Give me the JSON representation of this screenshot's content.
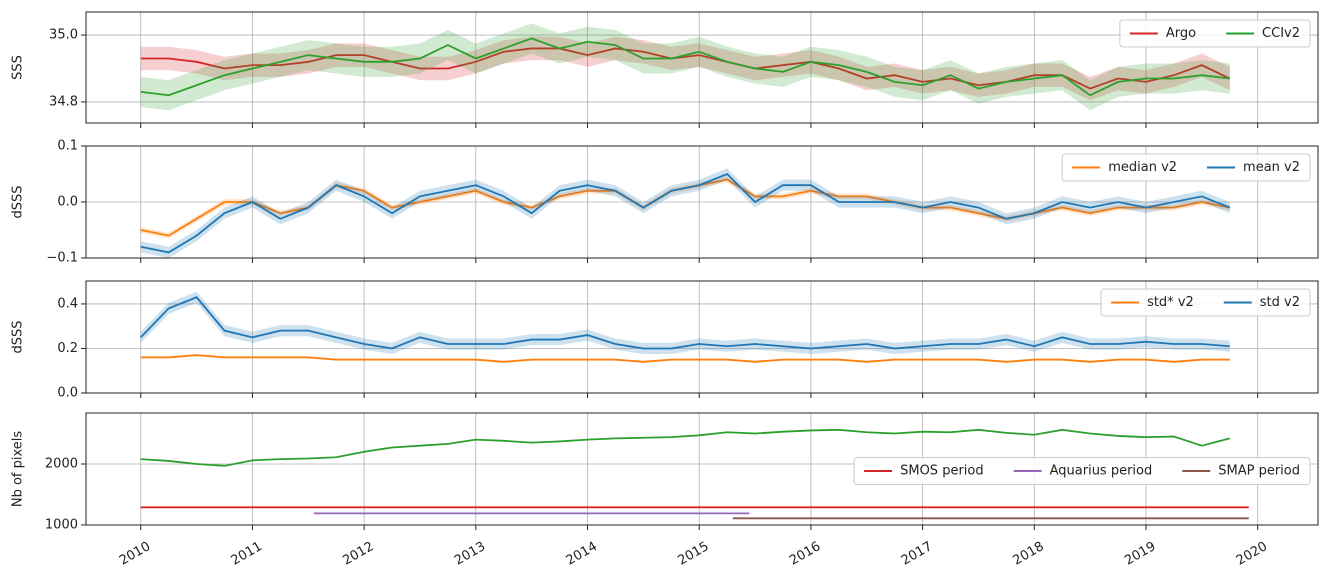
{
  "chart_data": [
    {
      "type": "line",
      "ylabel": "SSS",
      "ylim": [
        34.737,
        35.069
      ],
      "yticks": [
        {
          "value": 34.8,
          "label": "34.8"
        },
        {
          "value": 35,
          "label": "35.0"
        }
      ],
      "legend": "upper right",
      "legend_columns": 2,
      "grid": true,
      "x": [
        2010,
        2010.25,
        2010.5,
        2010.75,
        2011,
        2011.25,
        2011.5,
        2011.75,
        2012,
        2012.25,
        2012.5,
        2012.75,
        2013,
        2013.25,
        2013.5,
        2013.75,
        2014,
        2014.25,
        2014.5,
        2014.75,
        2015,
        2015.25,
        2015.5,
        2015.75,
        2016,
        2016.25,
        2016.5,
        2016.75,
        2017,
        2017.25,
        2017.5,
        2017.75,
        2018,
        2018.25,
        2018.5,
        2018.75,
        2019,
        2019.25,
        2019.5,
        2019.75
      ],
      "series": [
        {
          "name": "Argo",
          "color": "#d62728",
          "band": 0.035,
          "values": [
            34.93,
            34.93,
            34.92,
            34.9,
            34.91,
            34.91,
            34.92,
            34.94,
            34.94,
            34.92,
            34.9,
            34.9,
            34.92,
            34.95,
            34.96,
            34.96,
            34.94,
            34.96,
            34.95,
            34.93,
            34.94,
            34.92,
            34.9,
            34.91,
            34.92,
            34.9,
            34.87,
            34.88,
            34.86,
            34.87,
            34.85,
            34.86,
            34.88,
            34.88,
            34.84,
            34.87,
            34.86,
            34.88,
            34.91,
            34.87
          ]
        },
        {
          "name": "CCIv2",
          "color": "#2ca02c",
          "band": 0.045,
          "values": [
            34.83,
            34.82,
            34.85,
            34.88,
            34.9,
            34.92,
            34.94,
            34.93,
            34.92,
            34.92,
            34.93,
            34.97,
            34.93,
            34.96,
            34.99,
            34.96,
            34.98,
            34.97,
            34.93,
            34.93,
            34.95,
            34.92,
            34.9,
            34.89,
            34.92,
            34.91,
            34.89,
            34.86,
            34.85,
            34.88,
            34.84,
            34.86,
            34.87,
            34.88,
            34.82,
            34.86,
            34.87,
            34.87,
            34.88,
            34.87
          ]
        }
      ]
    },
    {
      "type": "line",
      "ylabel": "dSSS",
      "ylim": [
        -0.1,
        0.1
      ],
      "yticks": [
        {
          "value": -0.1,
          "label": "−0.1"
        },
        {
          "value": 0,
          "label": "0.0"
        },
        0.1
      ],
      "legend": "upper right",
      "legend_columns": 2,
      "grid": true,
      "x": [
        2010,
        2010.25,
        2010.5,
        2010.75,
        2011,
        2011.25,
        2011.5,
        2011.75,
        2012,
        2012.25,
        2012.5,
        2012.75,
        2013,
        2013.25,
        2013.5,
        2013.75,
        2014,
        2014.25,
        2014.5,
        2014.75,
        2015,
        2015.25,
        2015.5,
        2015.75,
        2016,
        2016.25,
        2016.5,
        2016.75,
        2017,
        2017.25,
        2017.5,
        2017.75,
        2018,
        2018.25,
        2018.5,
        2018.75,
        2019,
        2019.25,
        2019.5,
        2019.75
      ],
      "series": [
        {
          "name": "median v2",
          "color": "#ff7f0e",
          "band": 0.005,
          "values": [
            -0.05,
            -0.06,
            -0.03,
            0,
            0,
            -0.02,
            -0.01,
            0.03,
            0.02,
            -0.01,
            0,
            0.01,
            0.02,
            0,
            -0.01,
            0.01,
            0.02,
            0.02,
            -0.01,
            0.02,
            0.03,
            0.04,
            0.01,
            0.01,
            0.02,
            0.01,
            0.01,
            0,
            -0.01,
            -0.01,
            -0.02,
            -0.03,
            -0.02,
            -0.01,
            -0.02,
            -0.01,
            -0.01,
            -0.01,
            0,
            -0.01
          ]
        },
        {
          "name": "mean v2",
          "color": "#1f77b4",
          "band": 0.01,
          "values": [
            -0.08,
            -0.09,
            -0.06,
            -0.02,
            0,
            -0.03,
            -0.01,
            0.03,
            0.01,
            -0.02,
            0.01,
            0.02,
            0.03,
            0.01,
            -0.02,
            0.02,
            0.03,
            0.02,
            -0.01,
            0.02,
            0.03,
            0.05,
            0,
            0.03,
            0.03,
            0,
            0,
            0,
            -0.01,
            0,
            -0.01,
            -0.03,
            -0.02,
            0,
            -0.01,
            0,
            -0.01,
            0,
            0.01,
            -0.01
          ]
        }
      ]
    },
    {
      "type": "line",
      "ylabel": "dSSS",
      "ylim": [
        0,
        0.503
      ],
      "yticks": [
        {
          "value": 0,
          "label": "0.0"
        },
        0.2,
        0.4
      ],
      "legend": "upper right",
      "legend_columns": 2,
      "grid": true,
      "x": [
        2010,
        2010.25,
        2010.5,
        2010.75,
        2011,
        2011.25,
        2011.5,
        2011.75,
        2012,
        2012.25,
        2012.5,
        2012.75,
        2013,
        2013.25,
        2013.5,
        2013.75,
        2014,
        2014.25,
        2014.5,
        2014.75,
        2015,
        2015.25,
        2015.5,
        2015.75,
        2016,
        2016.25,
        2016.5,
        2016.75,
        2017,
        2017.25,
        2017.5,
        2017.75,
        2018,
        2018.25,
        2018.5,
        2018.75,
        2019,
        2019.25,
        2019.5,
        2019.75
      ],
      "series": [
        {
          "name": "std* v2",
          "color": "#ff7f0e",
          "band": 0.005,
          "values": [
            0.16,
            0.16,
            0.17,
            0.16,
            0.16,
            0.16,
            0.16,
            0.15,
            0.15,
            0.15,
            0.15,
            0.15,
            0.15,
            0.14,
            0.15,
            0.15,
            0.15,
            0.15,
            0.14,
            0.15,
            0.15,
            0.15,
            0.14,
            0.15,
            0.15,
            0.15,
            0.14,
            0.15,
            0.15,
            0.15,
            0.15,
            0.14,
            0.15,
            0.15,
            0.14,
            0.15,
            0.15,
            0.14,
            0.15,
            0.15
          ]
        },
        {
          "name": "std v2",
          "color": "#1f77b4",
          "band": 0.025,
          "values": [
            0.25,
            0.38,
            0.43,
            0.28,
            0.25,
            0.28,
            0.28,
            0.25,
            0.22,
            0.2,
            0.25,
            0.22,
            0.22,
            0.22,
            0.24,
            0.24,
            0.26,
            0.22,
            0.2,
            0.2,
            0.22,
            0.21,
            0.22,
            0.21,
            0.2,
            0.21,
            0.22,
            0.2,
            0.21,
            0.22,
            0.22,
            0.24,
            0.21,
            0.25,
            0.22,
            0.22,
            0.23,
            0.22,
            0.22,
            0.21
          ]
        }
      ]
    },
    {
      "type": "line",
      "ylabel": "Nb of pixels",
      "ylim": [
        1000,
        2836
      ],
      "yticks": [
        1000,
        2000
      ],
      "legend": "center right",
      "legend_columns": 3,
      "grid": true,
      "xlim": [
        2009.51,
        2020.54
      ],
      "xticks": [
        2010,
        2011,
        2012,
        2013,
        2014,
        2015,
        2016,
        2017,
        2018,
        2019,
        2020
      ],
      "x": [
        2010,
        2010.25,
        2010.5,
        2010.75,
        2011,
        2011.25,
        2011.5,
        2011.75,
        2012,
        2012.25,
        2012.5,
        2012.75,
        2013,
        2013.25,
        2013.5,
        2013.75,
        2014,
        2014.25,
        2014.5,
        2014.75,
        2015,
        2015.25,
        2015.5,
        2015.75,
        2016,
        2016.25,
        2016.5,
        2016.75,
        2017,
        2017.25,
        2017.5,
        2017.75,
        2018,
        2018.25,
        2018.5,
        2018.75,
        2019,
        2019.25,
        2019.5,
        2019.75
      ],
      "series": [
        {
          "color": "#2ca02c",
          "values": [
            2080,
            2050,
            2000,
            1970,
            2060,
            2080,
            2090,
            2110,
            2200,
            2270,
            2300,
            2330,
            2400,
            2380,
            2350,
            2370,
            2400,
            2420,
            2430,
            2440,
            2470,
            2520,
            2500,
            2530,
            2550,
            2560,
            2520,
            2500,
            2530,
            2520,
            2560,
            2510,
            2480,
            2560,
            2500,
            2460,
            2440,
            2450,
            2300,
            2420
          ]
        },
        {
          "name": "SMOS period",
          "color": "#d62728",
          "x": [
            2010,
            2019.92
          ],
          "values": [
            1290,
            1290
          ]
        },
        {
          "name": "Aquarius period",
          "color": "#9467bd",
          "x": [
            2011.55,
            2015.45
          ],
          "values": [
            1190,
            1190
          ]
        },
        {
          "name": "SMAP period",
          "color": "#8c564b",
          "x": [
            2015.3,
            2019.92
          ],
          "values": [
            1110,
            1110
          ]
        }
      ]
    }
  ]
}
